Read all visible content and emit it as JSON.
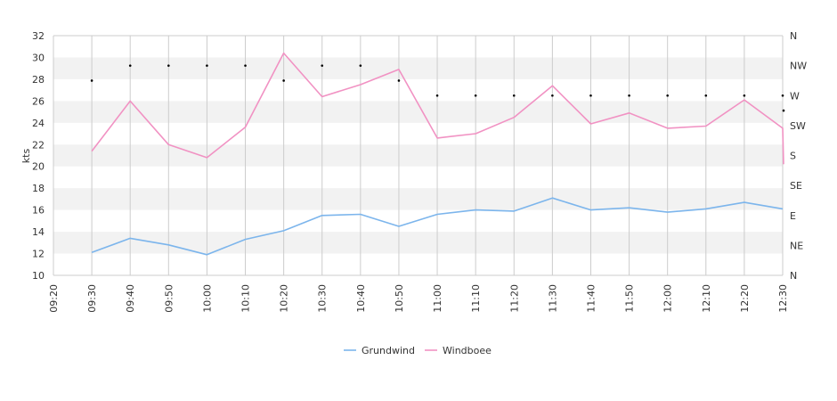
{
  "chart_data": {
    "type": "line",
    "ylabel": "kts",
    "ylim": [
      10,
      32
    ],
    "y_ticks": [
      "10",
      "12",
      "14",
      "16",
      "18",
      "20",
      "22",
      "24",
      "26",
      "28",
      "30",
      "32"
    ],
    "x": [
      "09:20",
      "09:30",
      "09:40",
      "09:50",
      "10:00",
      "10:10",
      "10:20",
      "10:30",
      "10:40",
      "10:50",
      "11:00",
      "11:10",
      "11:20",
      "11:30",
      "11:40",
      "11:50",
      "12:00",
      "12:10",
      "12:20",
      "12:30"
    ],
    "x_tick_labels": [
      "09:20",
      "09:30",
      "09:40",
      "09:50",
      "10:00",
      "10:10",
      "10:20",
      "10:30",
      "10:40",
      "10:50",
      "11:00",
      "11:10",
      "11:20",
      "11:30",
      "11:40",
      "11:50",
      "12:00",
      "12:10",
      "12:20",
      "12:30"
    ],
    "series": [
      {
        "name": "Grundwind",
        "color": "#7cb5ec",
        "points": [
          {
            "x": "09:30",
            "y": 12.1
          },
          {
            "x": "09:40",
            "y": 13.4
          },
          {
            "x": "09:50",
            "y": 12.8
          },
          {
            "x": "10:00",
            "y": 11.9
          },
          {
            "x": "10:10",
            "y": 13.3
          },
          {
            "x": "10:20",
            "y": 14.1
          },
          {
            "x": "10:30",
            "y": 15.5
          },
          {
            "x": "10:40",
            "y": 15.6
          },
          {
            "x": "10:50",
            "y": 14.5
          },
          {
            "x": "11:00",
            "y": 15.6
          },
          {
            "x": "11:10",
            "y": 16.0
          },
          {
            "x": "11:20",
            "y": 15.9
          },
          {
            "x": "11:30",
            "y": 17.1
          },
          {
            "x": "11:40",
            "y": 16.0
          },
          {
            "x": "11:50",
            "y": 16.2
          },
          {
            "x": "12:00",
            "y": 15.8
          },
          {
            "x": "12:10",
            "y": 16.1
          },
          {
            "x": "12:20",
            "y": 16.7
          },
          {
            "x": "12:30",
            "y": 16.1
          }
        ]
      },
      {
        "name": "Windboee",
        "color": "#f192c3",
        "points": [
          {
            "x": "09:30",
            "y": 21.4
          },
          {
            "x": "09:40",
            "y": 26.0
          },
          {
            "x": "09:50",
            "y": 22.0
          },
          {
            "x": "10:00",
            "y": 20.8
          },
          {
            "x": "10:10",
            "y": 23.6
          },
          {
            "x": "10:20",
            "y": 30.4
          },
          {
            "x": "10:30",
            "y": 26.4
          },
          {
            "x": "10:40",
            "y": 27.5
          },
          {
            "x": "10:50",
            "y": 28.9
          },
          {
            "x": "11:00",
            "y": 22.6
          },
          {
            "x": "11:10",
            "y": 23.0
          },
          {
            "x": "11:20",
            "y": 24.5
          },
          {
            "x": "11:30",
            "y": 27.4
          },
          {
            "x": "11:40",
            "y": 23.9
          },
          {
            "x": "11:50",
            "y": 24.9
          },
          {
            "x": "12:00",
            "y": 23.5
          },
          {
            "x": "12:10",
            "y": 23.7
          },
          {
            "x": "12:20",
            "y": 26.1
          },
          {
            "x": "12:30",
            "y": 23.5
          },
          {
            "x": "12:30",
            "y": 20.2
          }
        ]
      }
    ],
    "direction_axis": {
      "labels": [
        "N",
        "NE",
        "E",
        "SE",
        "S",
        "SW",
        "W",
        "NW",
        "N"
      ],
      "marker_color": "#000000",
      "values": [
        {
          "x": "09:30",
          "dir": 292.5
        },
        {
          "x": "09:40",
          "dir": 315
        },
        {
          "x": "09:50",
          "dir": 315
        },
        {
          "x": "10:00",
          "dir": 315
        },
        {
          "x": "10:10",
          "dir": 315
        },
        {
          "x": "10:20",
          "dir": 292.5
        },
        {
          "x": "10:30",
          "dir": 315
        },
        {
          "x": "10:40",
          "dir": 315
        },
        {
          "x": "10:50",
          "dir": 292.5
        },
        {
          "x": "11:00",
          "dir": 270
        },
        {
          "x": "11:10",
          "dir": 270
        },
        {
          "x": "11:20",
          "dir": 270
        },
        {
          "x": "11:30",
          "dir": 270
        },
        {
          "x": "11:40",
          "dir": 270
        },
        {
          "x": "11:50",
          "dir": 270
        },
        {
          "x": "12:00",
          "dir": 270
        },
        {
          "x": "12:10",
          "dir": 270
        },
        {
          "x": "12:20",
          "dir": 270
        },
        {
          "x": "12:30",
          "dir": 270
        },
        {
          "x": "12:30",
          "dir": 247.5
        }
      ]
    },
    "grid": true,
    "band_color": "#f2f2f2",
    "grid_color": "#cccccc",
    "legend_position": "bottom"
  }
}
